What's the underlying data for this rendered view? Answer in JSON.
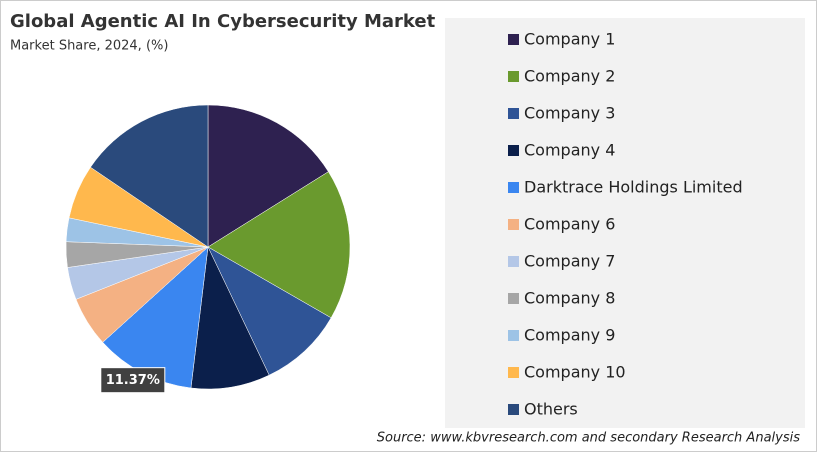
{
  "chart_data": {
    "type": "pie",
    "title": "Global Agentic AI In Cybersecurity Market",
    "subtitle": "Market Share, 2024, (%)",
    "categories": [
      "Company 1",
      "Company 2",
      "Company 3",
      "Company 4",
      "Darktrace Holdings Limited",
      "Company 6",
      "Company 7",
      "Company 8",
      "Company 9",
      "Company 10",
      "Others"
    ],
    "values": [
      16.1,
      17.2,
      9.6,
      9.0,
      11.37,
      5.7,
      3.7,
      2.9,
      2.7,
      6.2,
      15.5
    ],
    "value_labels": [
      null,
      null,
      null,
      null,
      "11.37%",
      null,
      null,
      null,
      null,
      null,
      null
    ],
    "colors": [
      "#2e2150",
      "#6a9a2e",
      "#2f5496",
      "#0b1f4b",
      "#3a86f0",
      "#f4b183",
      "#b4c7e7",
      "#a6a6a6",
      "#9dc3e6",
      "#ffb84d",
      "#2a4a7c"
    ],
    "legend": "right",
    "source": "Source: www.kbvresearch.com and secondary Research Analysis"
  }
}
